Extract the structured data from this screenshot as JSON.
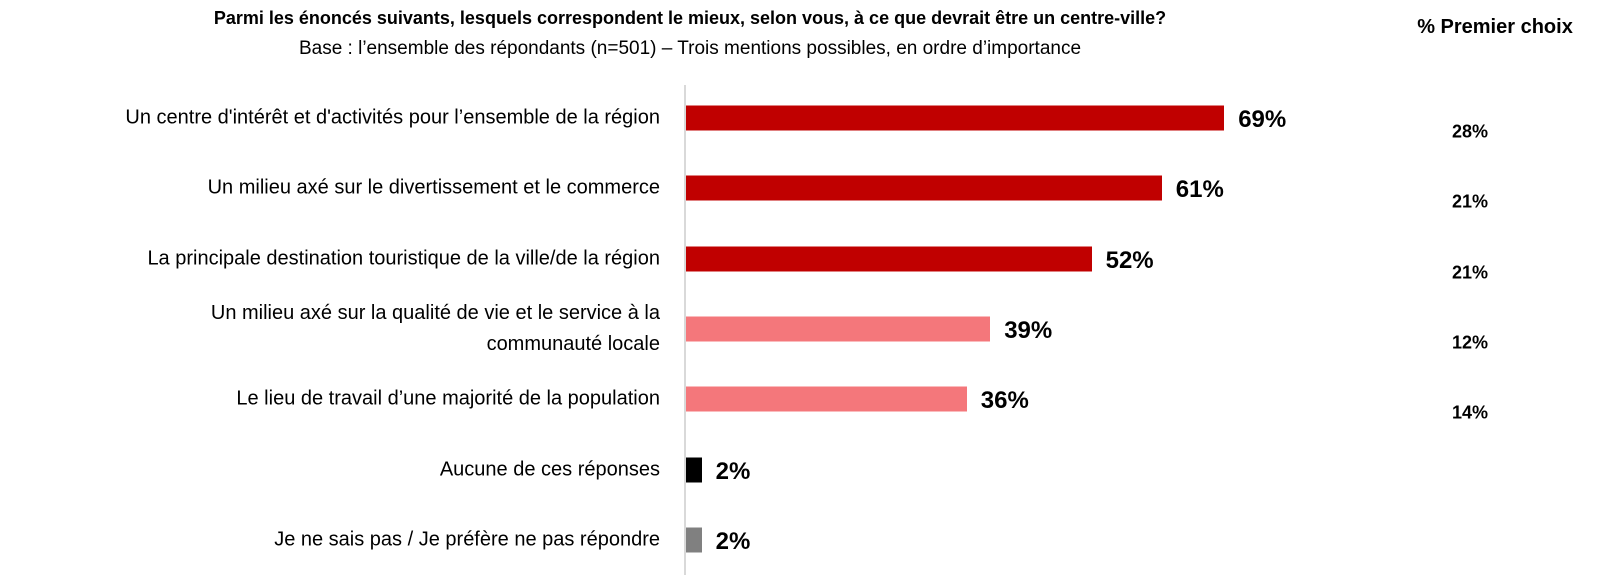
{
  "chart_data": {
    "type": "bar",
    "orientation": "horizontal",
    "title": "Parmi les énoncés suivants, lesquels correspondent le mieux, selon vous, à ce que devrait être un centre-ville?",
    "subtitle": "Base : l’ensemble des répondants (n=501) – Trois mentions possibles, en ordre d’importance",
    "categories": [
      "Un centre d'intérêt et d'activités pour l’ensemble de la région",
      "Un milieu axé sur le divertissement et le commerce",
      "La principale destination touristique de la ville/de la région",
      "Un milieu axé sur la qualité de vie et le service à la\ncommunauté locale",
      "Le lieu de travail d’une majorité de la population",
      "Aucune de ces réponses",
      "Je ne sais pas / Je préfère ne pas répondre"
    ],
    "values": [
      69,
      61,
      52,
      39,
      36,
      2,
      2
    ],
    "value_labels": [
      "69%",
      "61%",
      "52%",
      "39%",
      "36%",
      "2%",
      "2%"
    ],
    "colors": [
      "#c00000",
      "#c00000",
      "#c00000",
      "#f4777b",
      "#f4777b",
      "#000000",
      "#808080"
    ],
    "first_choice": {
      "title": "% Premier choix",
      "values": [
        28,
        21,
        21,
        12,
        14
      ],
      "value_labels": [
        "28%",
        "21%",
        "21%",
        "12%",
        "14%"
      ]
    }
  }
}
